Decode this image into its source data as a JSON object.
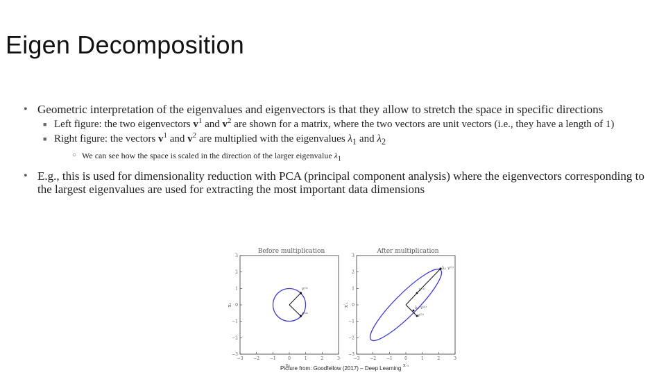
{
  "slide": {
    "title": "Eigen Decomposition",
    "bullets": {
      "b1": {
        "text": "Geometric interpretation of the eigenvalues and eigenvectors is that they allow to stretch the space in specific directions"
      },
      "sub1": {
        "pre": "Left figure: the two eigenvectors ",
        "v1": "v",
        "v1_sup": "1",
        "mid": " and ",
        "v2": "v",
        "v2_sup": "2",
        "post": " are shown for a matrix, where the two vectors are unit vectors (i.e., they have a length of 1)"
      },
      "sub2": {
        "pre": "Right figure: the vectors  ",
        "v1": "v",
        "v1_sup": "1",
        "mid": " and ",
        "v2": "v",
        "v2_sup": "2",
        "mid2": " are multiplied with the eigenvalues ",
        "lam1": "λ",
        "lam1_sub": "1",
        "and": " and ",
        "lam2": "λ",
        "lam2_sub": "2"
      },
      "subsub": {
        "pre": "We can see how the space is scaled in the direction of the larger eigenvalue ",
        "lam": "λ",
        "lam_sub": "1"
      },
      "b2": {
        "text": "E.g., this is used for dimensionality reduction with PCA (principal component analysis) where the eigenvectors corresponding to the largest eigenvalues are used for extracting the most important data dimensions"
      }
    },
    "figure": {
      "left_title": "Before multiplication",
      "right_title": "After multiplication",
      "ticks": [
        "−3",
        "−2",
        "−1",
        "0",
        "1",
        "2",
        "3"
      ],
      "left_xlabel": "x₀",
      "left_ylabel": "x₁",
      "right_xlabel": "x′₀",
      "right_ylabel": "x′₁",
      "left_v1_label": "v⁽¹⁾",
      "left_v2_label": "v⁽²⁾",
      "right_v1_label": "v⁽¹⁾",
      "right_v2_label": "v⁽²⁾",
      "right_lam1_label": "λ₁ v⁽¹⁾",
      "right_lam2_label": "λ₂ v⁽²⁾",
      "circle_color": "#3b3bd6"
    },
    "credit": "Picture from: Goodfellow (2017) – Deep Learning"
  }
}
